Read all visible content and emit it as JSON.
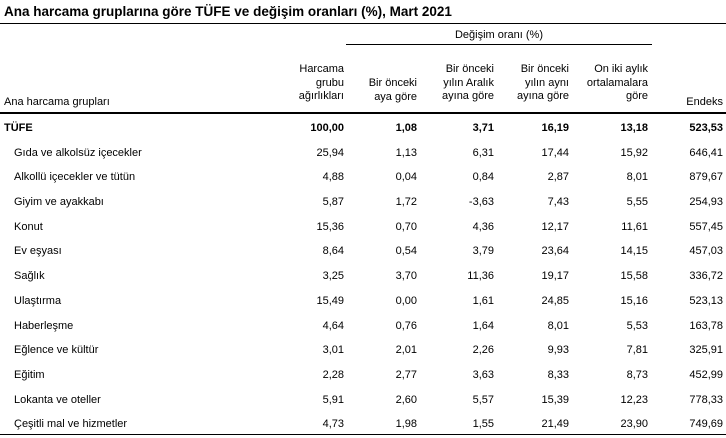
{
  "title": "Ana harcama gruplarına göre TÜFE ve değişim oranları (%), Mart 2021",
  "change_group_label": "Değişim oranı (%)",
  "columns": {
    "group": "Ana harcama grupları",
    "weight": "Harcama\ngrubu\nağırlıkları",
    "monthly": "Bir önceki\naya göre",
    "ytd": "Bir önceki\nyılın Aralık\nayına göre",
    "yoy": "Bir önceki\nyılın aynı\nayına göre",
    "avg12": "On iki aylık\nortalamalara\ngöre",
    "index": "Endeks"
  },
  "rows": [
    {
      "name": "TÜFE",
      "weight": "100,00",
      "monthly": "1,08",
      "ytd": "3,71",
      "yoy": "16,19",
      "avg12": "13,18",
      "index": "523,53"
    },
    {
      "name": "Gıda ve alkolsüz içecekler",
      "weight": "25,94",
      "monthly": "1,13",
      "ytd": "6,31",
      "yoy": "17,44",
      "avg12": "15,92",
      "index": "646,41"
    },
    {
      "name": "Alkollü içecekler ve tütün",
      "weight": "4,88",
      "monthly": "0,04",
      "ytd": "0,84",
      "yoy": "2,87",
      "avg12": "8,01",
      "index": "879,67"
    },
    {
      "name": "Giyim ve ayakkabı",
      "weight": "5,87",
      "monthly": "1,72",
      "ytd": "-3,63",
      "yoy": "7,43",
      "avg12": "5,55",
      "index": "254,93"
    },
    {
      "name": "Konut",
      "weight": "15,36",
      "monthly": "0,70",
      "ytd": "4,36",
      "yoy": "12,17",
      "avg12": "11,61",
      "index": "557,45"
    },
    {
      "name": "Ev eşyası",
      "weight": "8,64",
      "monthly": "0,54",
      "ytd": "3,79",
      "yoy": "23,64",
      "avg12": "14,15",
      "index": "457,03"
    },
    {
      "name": "Sağlık",
      "weight": "3,25",
      "monthly": "3,70",
      "ytd": "11,36",
      "yoy": "19,17",
      "avg12": "15,58",
      "index": "336,72"
    },
    {
      "name": "Ulaştırma",
      "weight": "15,49",
      "monthly": "0,00",
      "ytd": "1,61",
      "yoy": "24,85",
      "avg12": "15,16",
      "index": "523,13"
    },
    {
      "name": "Haberleşme",
      "weight": "4,64",
      "monthly": "0,76",
      "ytd": "1,64",
      "yoy": "8,01",
      "avg12": "5,53",
      "index": "163,78"
    },
    {
      "name": "Eğlence ve kültür",
      "weight": "3,01",
      "monthly": "2,01",
      "ytd": "2,26",
      "yoy": "9,93",
      "avg12": "7,81",
      "index": "325,91"
    },
    {
      "name": "Eğitim",
      "weight": "2,28",
      "monthly": "2,77",
      "ytd": "3,63",
      "yoy": "8,33",
      "avg12": "8,73",
      "index": "452,99"
    },
    {
      "name": "Lokanta ve oteller",
      "weight": "5,91",
      "monthly": "2,60",
      "ytd": "5,57",
      "yoy": "15,39",
      "avg12": "12,23",
      "index": "778,33"
    },
    {
      "name": "Çeşitli mal ve hizmetler",
      "weight": "4,73",
      "monthly": "1,98",
      "ytd": "1,55",
      "yoy": "21,49",
      "avg12": "23,90",
      "index": "749,69"
    }
  ]
}
